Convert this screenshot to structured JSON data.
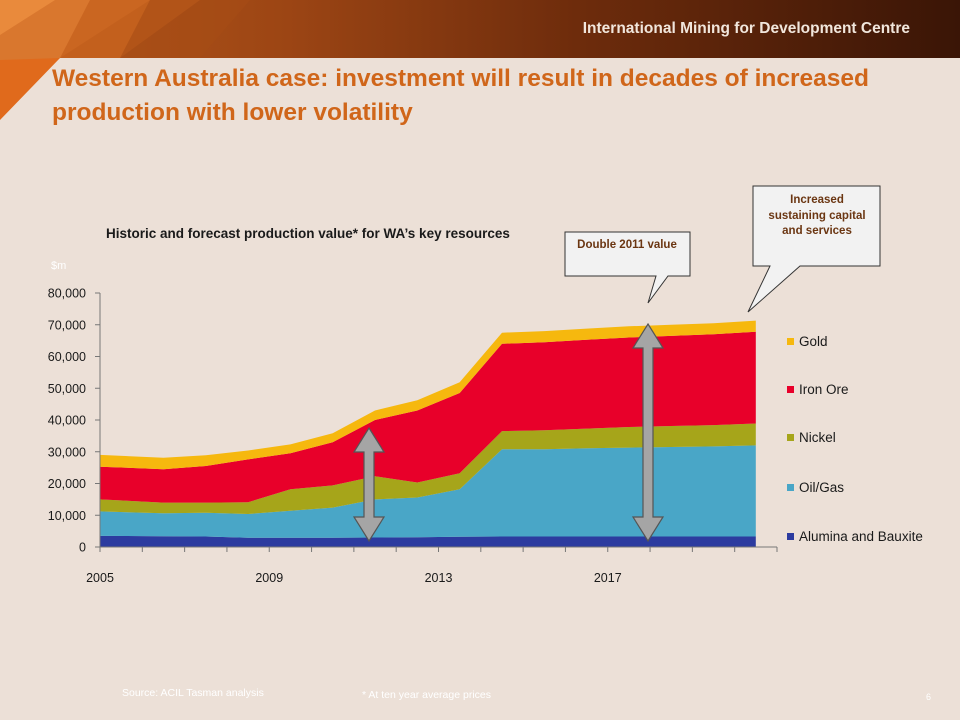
{
  "header": {
    "org_name": "International Mining for Development Centre"
  },
  "slide": {
    "title": "Western Australia case: investment will result in decades of increased production with lower volatility",
    "source": "Source: ACIL Tasman analysis",
    "footnote": "* At ten year average prices",
    "page_number": "6"
  },
  "callouts": {
    "double": "Double 2011 value",
    "sustaining": "Increased sustaining capital and services"
  },
  "colors": {
    "title": "#d0661a",
    "gold": "#f6b80e",
    "iron_ore": "#e8002a",
    "nickel": "#a6a51a",
    "oil_gas": "#49a6c7",
    "alumina": "#2c3b9f",
    "arrow": "#a5a5a5"
  },
  "chart_data": {
    "type": "area",
    "title": "Historic and forecast production value* for WA’s key resources",
    "ylabel": "$m",
    "ylim": [
      0,
      80000
    ],
    "yticks": [
      0,
      10000,
      20000,
      30000,
      40000,
      50000,
      60000,
      70000,
      80000
    ],
    "ytick_labels": [
      "0",
      "10,000",
      "20,000",
      "30,000",
      "40,000",
      "50,000",
      "60,000",
      "70,000",
      "80,000"
    ],
    "xtick_labels": [
      "2005",
      "2009",
      "2013",
      "2017"
    ],
    "xtick_years": [
      2005,
      2009,
      2013,
      2017
    ],
    "x": [
      2005,
      2006,
      2007,
      2008,
      2009,
      2010,
      2011,
      2012,
      2013,
      2014,
      2015,
      2016,
      2017,
      2018,
      2019,
      2020
    ],
    "stacked": true,
    "legend_position": "right",
    "series": [
      {
        "name": "Alumina and Bauxite",
        "color": "#2c3b9f",
        "values": [
          3500,
          3400,
          3300,
          2900,
          2900,
          2900,
          3000,
          3100,
          3200,
          3300,
          3300,
          3300,
          3300,
          3300,
          3300,
          3300
        ]
      },
      {
        "name": "Oil/Gas",
        "color": "#49a6c7",
        "values": [
          7700,
          7200,
          7500,
          7500,
          8500,
          9500,
          12000,
          12500,
          15000,
          27500,
          27500,
          27800,
          28000,
          28200,
          28400,
          28700
        ]
      },
      {
        "name": "Nickel",
        "color": "#a6a51a",
        "values": [
          3800,
          3400,
          3200,
          3700,
          6800,
          7000,
          7300,
          4700,
          5000,
          5700,
          6000,
          6200,
          6500,
          6600,
          6700,
          6900
        ]
      },
      {
        "name": "Iron Ore",
        "color": "#e8002a",
        "values": [
          10300,
          10500,
          11500,
          13500,
          11300,
          13600,
          17700,
          22700,
          25300,
          27500,
          27700,
          28000,
          28200,
          28400,
          28600,
          28900
        ]
      },
      {
        "name": "Gold",
        "color": "#f6b80e",
        "values": [
          3700,
          3600,
          3400,
          2800,
          2800,
          2800,
          3000,
          3200,
          3400,
          3500,
          3500,
          3500,
          3500,
          3500,
          3500,
          3500
        ]
      }
    ],
    "legend_order": [
      "Gold",
      "Iron Ore",
      "Nickel",
      "Oil/Gas",
      "Alumina and Bauxite"
    ]
  }
}
